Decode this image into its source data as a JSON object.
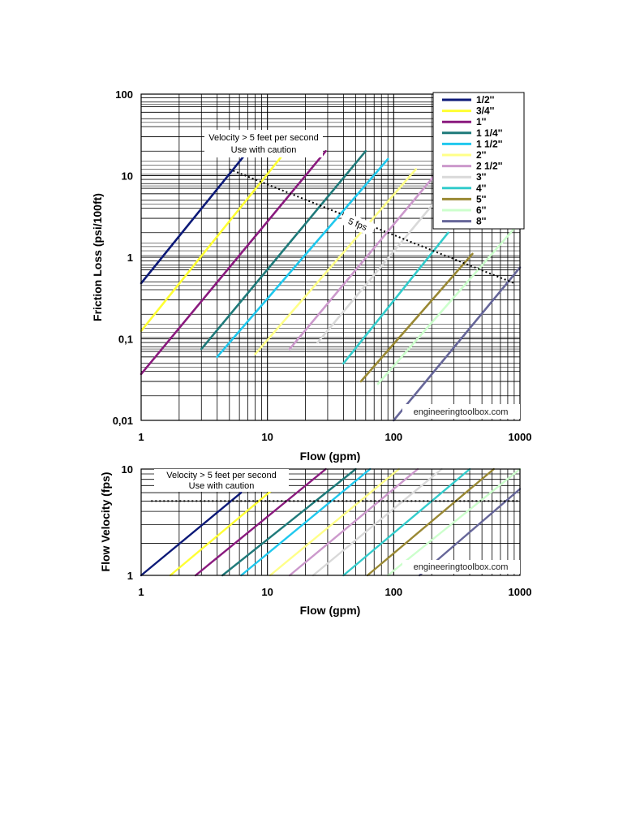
{
  "chart_data": [
    {
      "type": "line",
      "name": "friction-loss",
      "xlabel": "Flow (gpm)",
      "ylabel": "Friction Loss (psi/100ft)",
      "xscale": "log",
      "yscale": "log",
      "xlim": [
        1,
        1000
      ],
      "ylim": [
        0.01,
        100
      ],
      "grid": true,
      "legend_position": "top-right",
      "x_tick_labels": [
        "1",
        "10",
        "100",
        "1000"
      ],
      "y_tick_labels": [
        "0,01",
        "0,1",
        "1",
        "10",
        "100"
      ],
      "series": [
        {
          "name": "1/2''",
          "color": "#0d1a78",
          "x": [
            1,
            7
          ],
          "y": [
            0.48,
            20
          ]
        },
        {
          "name": "3/4''",
          "color": "#ffff33",
          "x": [
            1,
            14
          ],
          "y": [
            0.125,
            20
          ]
        },
        {
          "name": "1''",
          "color": "#8a1a7e",
          "x": [
            1,
            29
          ],
          "y": [
            0.037,
            20
          ]
        },
        {
          "name": "1 1/4''",
          "color": "#1f7a7a",
          "x": [
            3,
            60
          ],
          "y": [
            0.075,
            20
          ]
        },
        {
          "name": "1 1/2''",
          "color": "#1fc8ee",
          "x": [
            4,
            90
          ],
          "y": [
            0.06,
            16
          ]
        },
        {
          "name": "2''",
          "color": "#ffff88",
          "x": [
            8,
            150
          ],
          "y": [
            0.065,
            12
          ]
        },
        {
          "name": "2 1/2''",
          "color": "#cc99cc",
          "x": [
            15,
            210
          ],
          "y": [
            0.075,
            10
          ]
        },
        {
          "name": "3''",
          "color": "#d9d9d9",
          "x": [
            25,
            240
          ],
          "y": [
            0.09,
            6
          ]
        },
        {
          "name": "4''",
          "color": "#33cccc",
          "x": [
            40,
            270
          ],
          "y": [
            0.05,
            2
          ]
        },
        {
          "name": "5''",
          "color": "#998833",
          "x": [
            55,
            420
          ],
          "y": [
            0.03,
            1.1
          ]
        },
        {
          "name": "6''",
          "color": "#ccffcc",
          "x": [
            75,
            1000
          ],
          "y": [
            0.028,
            2.7
          ]
        },
        {
          "name": "8''",
          "color": "#666699",
          "x": [
            100,
            1000
          ],
          "y": [
            0.01,
            0.75
          ]
        }
      ],
      "reference_line": {
        "label": "5 fps",
        "x": [
          5,
          900
        ],
        "y": [
          12,
          0.48
        ]
      },
      "annotation": [
        "Velocity > 5 feet per second",
        "Use with caution"
      ],
      "watermark": "engineeringtoolbox.com"
    },
    {
      "type": "line",
      "name": "flow-velocity",
      "xlabel": "Flow (gpm)",
      "ylabel": "Flow Velocity (fps)",
      "xscale": "log",
      "yscale": "log",
      "xlim": [
        1,
        1000
      ],
      "ylim": [
        1,
        10
      ],
      "grid": true,
      "x_tick_labels": [
        "1",
        "10",
        "100",
        "1000"
      ],
      "y_tick_labels": [
        "1",
        "10"
      ],
      "series": [
        {
          "name": "1/2''",
          "color": "#0d1a78",
          "x": [
            1,
            6.2
          ],
          "y": [
            1,
            6
          ]
        },
        {
          "name": "3/4''",
          "color": "#ffff33",
          "x": [
            1.7,
            12
          ],
          "y": [
            1,
            7
          ]
        },
        {
          "name": "1''",
          "color": "#8a1a7e",
          "x": [
            2.7,
            29
          ],
          "y": [
            1,
            10
          ]
        },
        {
          "name": "1 1/4''",
          "color": "#1f7a7a",
          "x": [
            4.4,
            50
          ],
          "y": [
            1,
            10
          ]
        },
        {
          "name": "1 1/2''",
          "color": "#1fc8ee",
          "x": [
            6.2,
            65
          ],
          "y": [
            1,
            10
          ]
        },
        {
          "name": "2''",
          "color": "#ffff88",
          "x": [
            10.5,
            110
          ],
          "y": [
            1,
            10
          ]
        },
        {
          "name": "2 1/2''",
          "color": "#cc99cc",
          "x": [
            15,
            155
          ],
          "y": [
            1,
            10
          ]
        },
        {
          "name": "3''",
          "color": "#d9d9d9",
          "x": [
            23,
            240
          ],
          "y": [
            1,
            10
          ]
        },
        {
          "name": "4''",
          "color": "#33cccc",
          "x": [
            40,
            400
          ],
          "y": [
            1,
            10
          ]
        },
        {
          "name": "5''",
          "color": "#998833",
          "x": [
            62,
            620
          ],
          "y": [
            1,
            10
          ]
        },
        {
          "name": "6''",
          "color": "#ccffcc",
          "x": [
            90,
            1000
          ],
          "y": [
            1,
            10
          ]
        },
        {
          "name": "8''",
          "color": "#666699",
          "x": [
            160,
            1000
          ],
          "y": [
            1,
            6.5
          ]
        }
      ],
      "reference_line": {
        "x": [
          1.2,
          1000
        ],
        "y": [
          5,
          5
        ]
      },
      "annotation": [
        "Velocity > 5 feet per second",
        "Use with caution"
      ],
      "watermark": "engineeringtoolbox.com"
    }
  ]
}
